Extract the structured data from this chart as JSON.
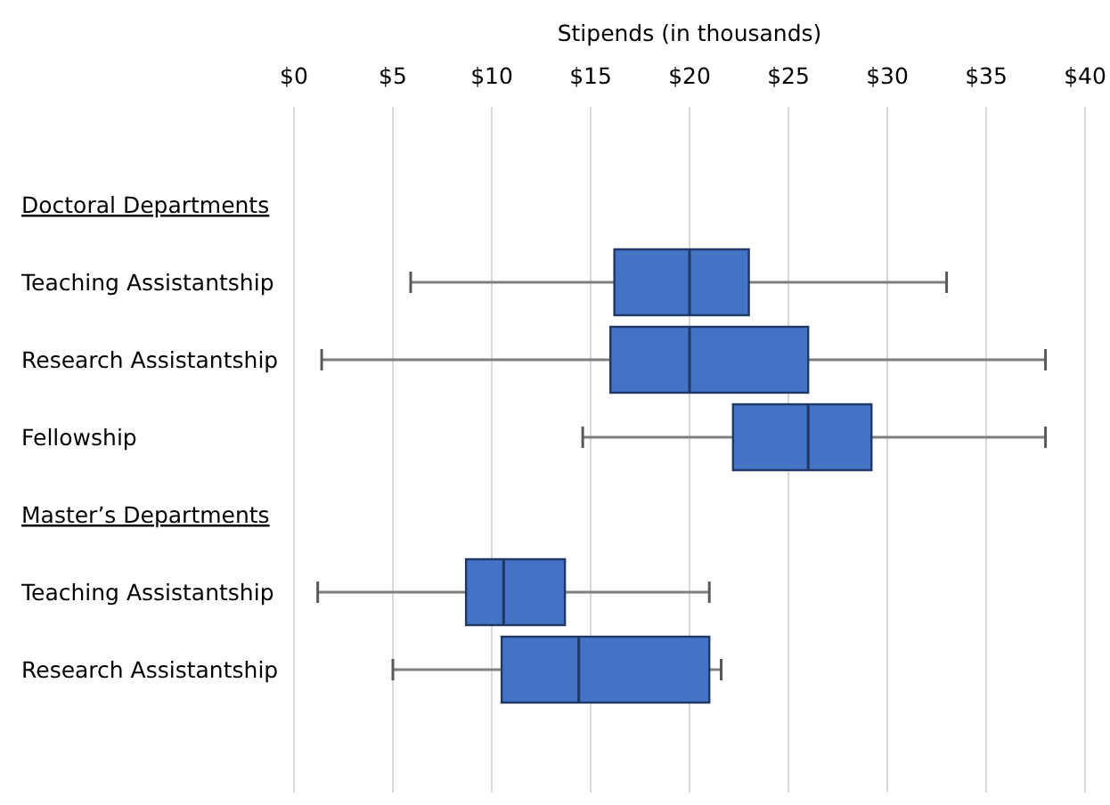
{
  "chart_data": {
    "type": "box",
    "orientation": "horizontal",
    "xlabel": "Stipends (in thousands)",
    "categories": [
      "Doctoral Departments",
      "Teaching Assistantship",
      "Research Assistantship",
      "Fellowship",
      "Master’s Departments",
      "Teaching Assistantship",
      "Research Assistantship",
      null
    ],
    "boxes": [
      null,
      {
        "low": 5.9,
        "q1": 16.2,
        "median": 20,
        "q3": 23,
        "high": 33
      },
      {
        "low": 1.4,
        "q1": 16,
        "median": 20,
        "q3": 26,
        "high": 38
      },
      {
        "low": 14.6,
        "q1": 22.2,
        "median": 26,
        "q3": 29.2,
        "high": 38
      },
      null,
      {
        "low": 1.2,
        "q1": 8.7,
        "median": 10.6,
        "q3": 13.7,
        "high": 21
      },
      {
        "low": 5,
        "q1": 10.5,
        "median": 14.4,
        "q3": 21,
        "high": 21.6
      },
      null
    ],
    "color": "#4472c4",
    "xlim": [
      0,
      40
    ],
    "xticks": [
      {
        "value": 0,
        "label": "$0"
      },
      {
        "value": 5,
        "label": "$5"
      },
      {
        "value": 10,
        "label": "$10"
      },
      {
        "value": 15,
        "label": "$15"
      },
      {
        "value": 20,
        "label": "$20"
      },
      {
        "value": 25,
        "label": "$25"
      },
      {
        "value": 30,
        "label": "$30"
      },
      {
        "value": 35,
        "label": "$35"
      },
      {
        "value": 40,
        "label": "$40"
      }
    ],
    "grid": "x"
  }
}
